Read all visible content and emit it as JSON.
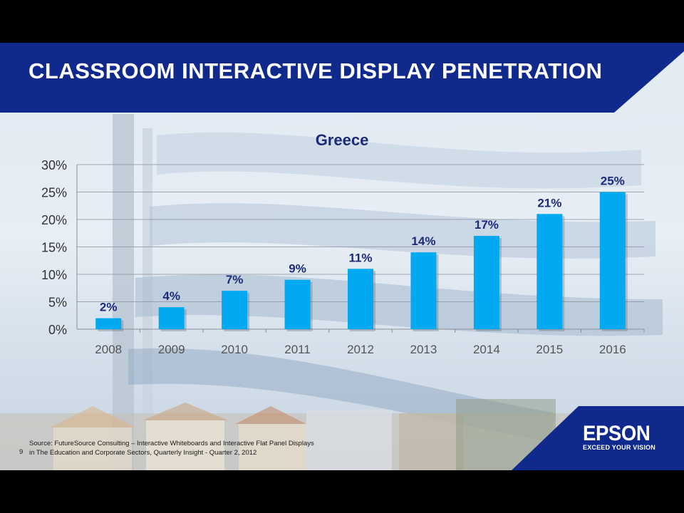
{
  "slide": {
    "title": "CLASSROOM INTERACTIVE DISPLAY PENETRATION",
    "page_number": "9",
    "source_line1": "Source: FutureSource Consulting – Interactive Whiteboards and Interactive Flat Panel Displays",
    "source_line2": "in The Education and Corporate Sectors, Quarterly Insight - Quarter 2, 2012",
    "brand": "EPSON",
    "tagline": "EXCEED YOUR VISION",
    "colors": {
      "header": "#0f2a8c",
      "bar": "#00a9f0",
      "background": "#e3ebf3"
    }
  },
  "chart_data": {
    "type": "bar",
    "title": "Greece",
    "categories": [
      "2008",
      "2009",
      "2010",
      "2011",
      "2012",
      "2013",
      "2014",
      "2015",
      "2016"
    ],
    "values": [
      2,
      4,
      7,
      9,
      11,
      14,
      17,
      21,
      25
    ],
    "data_labels": [
      "2%",
      "4%",
      "7%",
      "9%",
      "11%",
      "14%",
      "17%",
      "21%",
      "25%"
    ],
    "y_ticks": [
      "0%",
      "5%",
      "10%",
      "15%",
      "20%",
      "25%",
      "30%"
    ],
    "ylim": [
      0,
      30
    ],
    "grid": true,
    "legend": "none"
  }
}
